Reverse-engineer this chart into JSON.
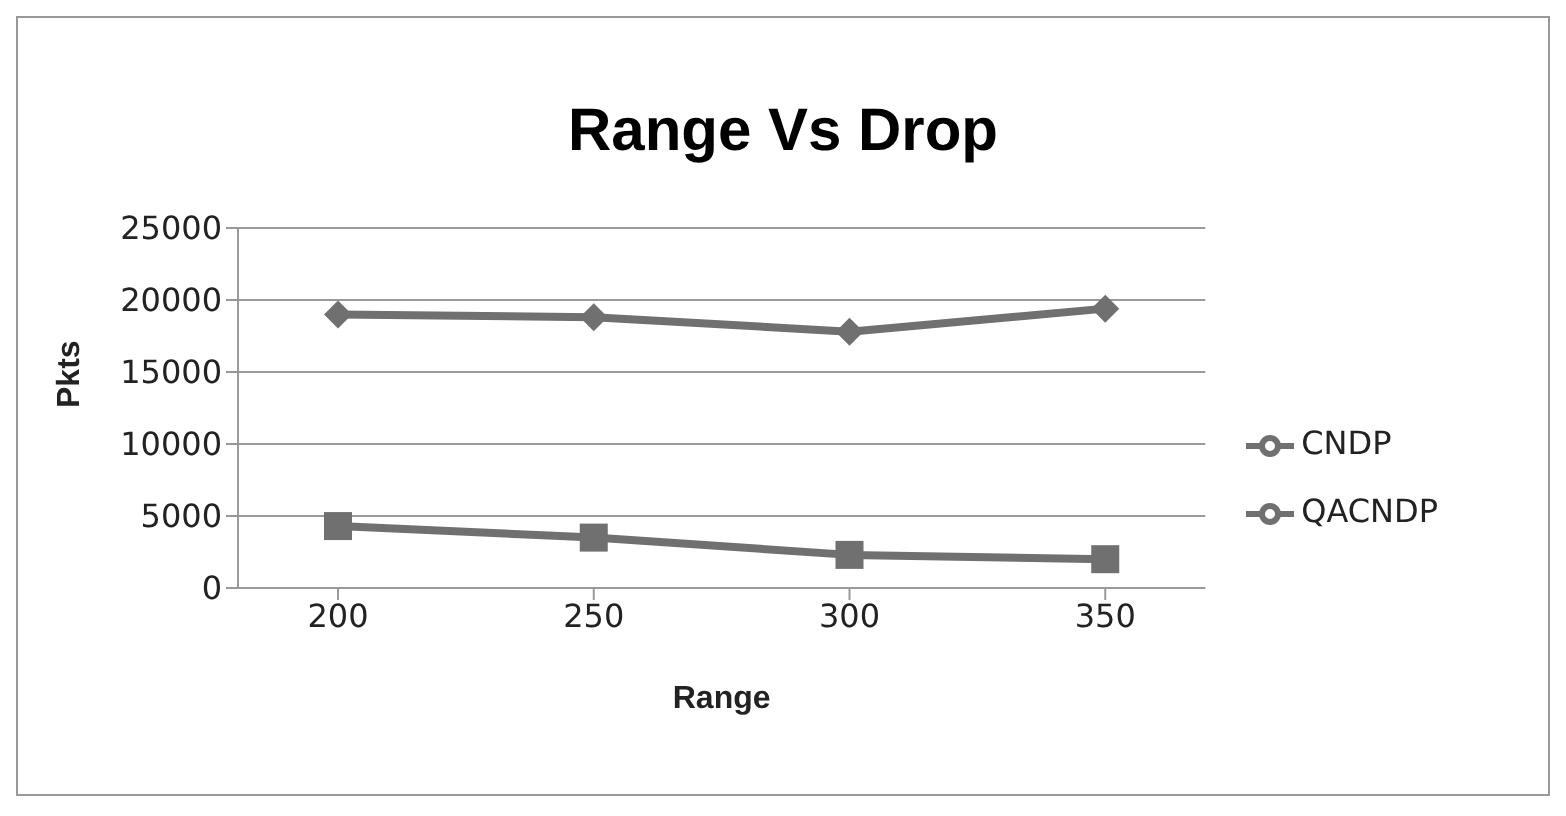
{
  "chart_data": {
    "type": "line",
    "title": "Range Vs Drop",
    "xlabel": "Range",
    "ylabel": "Pkts",
    "categories": [
      "200",
      "250",
      "300",
      "350"
    ],
    "series": [
      {
        "name": "CNDP",
        "color": "#707070",
        "marker": "diamond",
        "values": [
          19000,
          18800,
          17800,
          19400
        ]
      },
      {
        "name": "QACNDP",
        "color": "#707070",
        "marker": "square",
        "values": [
          4300,
          3500,
          2300,
          2000
        ]
      }
    ],
    "ylim": [
      0,
      25000
    ],
    "yticks": [
      0,
      5000,
      10000,
      15000,
      20000,
      25000
    ],
    "grid": "y",
    "legend": "right"
  }
}
